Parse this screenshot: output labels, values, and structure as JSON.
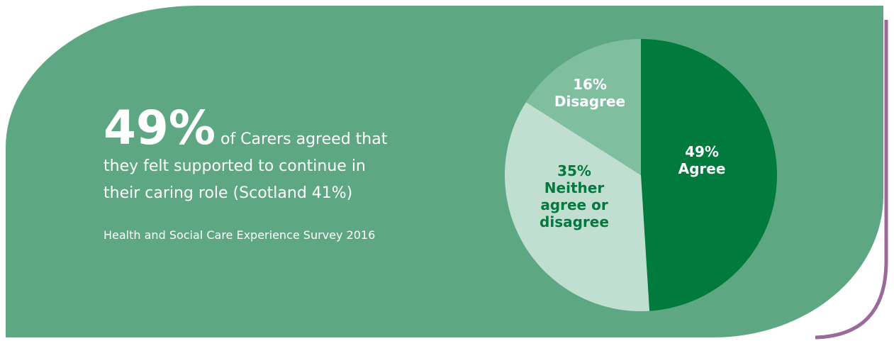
{
  "headline": {
    "big_value": "49%",
    "text_part1": " of Carers agreed that",
    "text_part2": "they felt supported to continue in",
    "text_part3": "their caring role (Scotland 41%)"
  },
  "source": "Health and Social Care Experience Survey 2016",
  "colors": {
    "panel": "#5da882",
    "accent_border": "#9a6a9a",
    "agree": "#007a3d",
    "neither": "#c0dfd0",
    "disagree": "#80bea0"
  },
  "chart_data": {
    "type": "pie",
    "title": "",
    "slices": [
      {
        "label_value": "49%",
        "label_lines": [
          "Agree"
        ],
        "value": 49,
        "color": "#007a3d",
        "text_color": "#ffffff"
      },
      {
        "label_value": "35%",
        "label_lines": [
          "Neither",
          "agree or",
          "disagree"
        ],
        "value": 35,
        "color": "#c0dfd0",
        "text_color": "#007a3d"
      },
      {
        "label_value": "16%",
        "label_lines": [
          "Disagree"
        ],
        "value": 16,
        "color": "#80bea0",
        "text_color": "#ffffff"
      }
    ]
  }
}
